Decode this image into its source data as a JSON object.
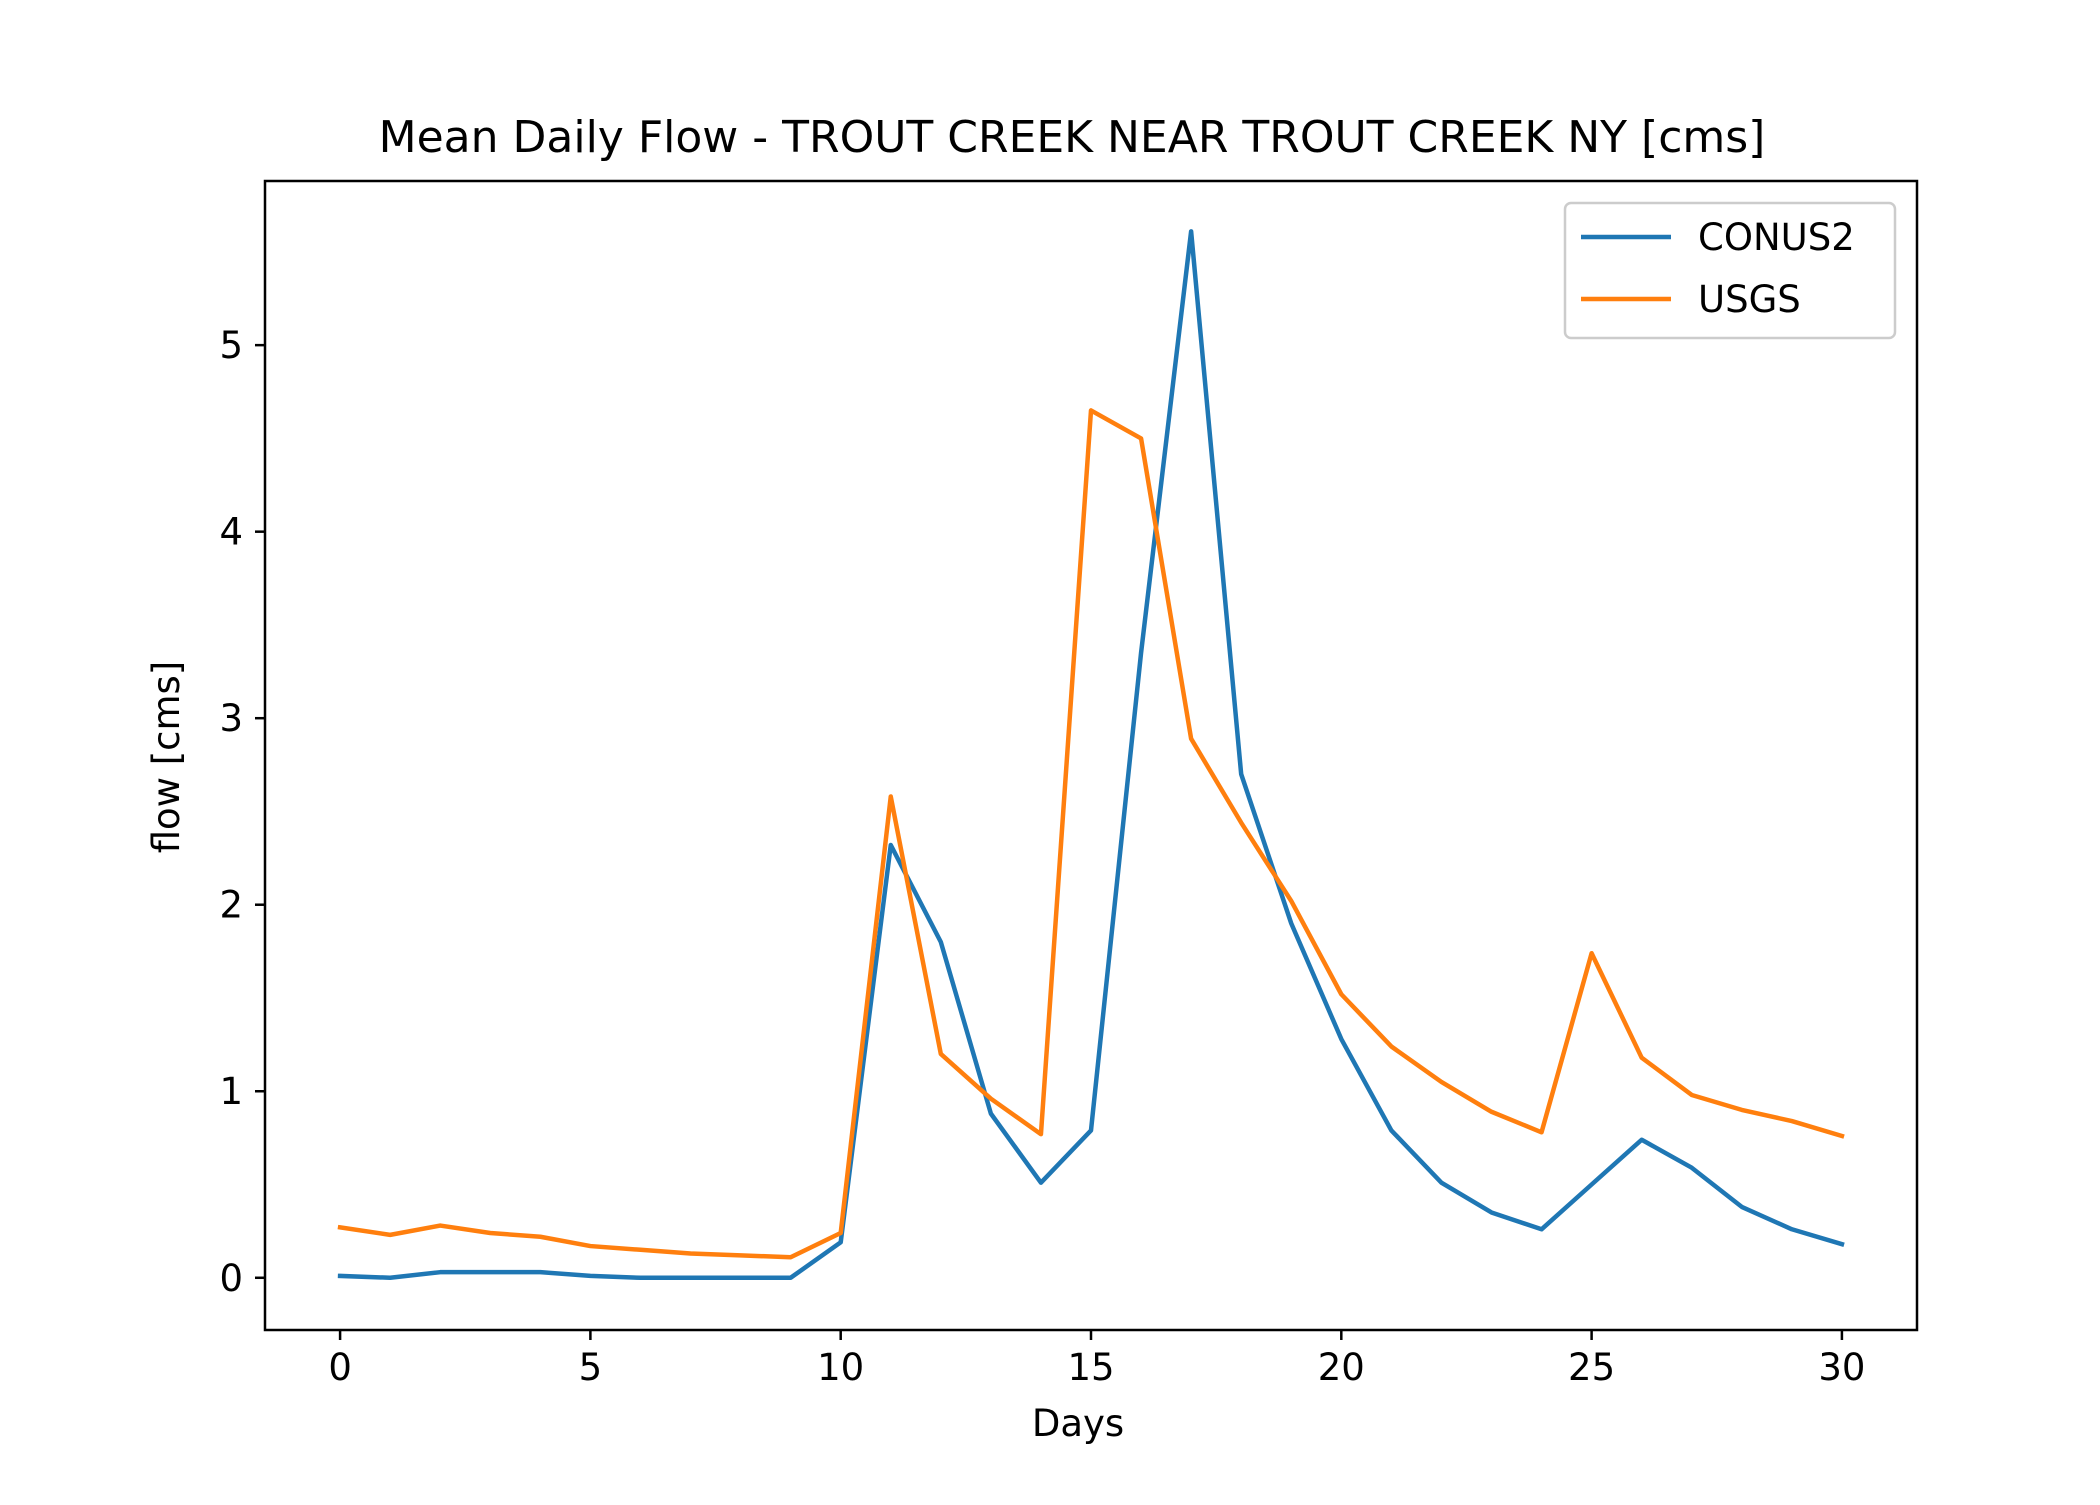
{
  "chart_data": {
    "type": "line",
    "title": "Mean Daily Flow - TROUT CREEK NEAR TROUT CREEK NY [cms]",
    "xlabel": "Days",
    "ylabel": "flow [cms]",
    "xlim": [
      -1.5,
      31.5
    ],
    "ylim": [
      -0.28,
      5.88
    ],
    "xticks": [
      0,
      5,
      10,
      15,
      20,
      25,
      30
    ],
    "yticks": [
      0,
      1,
      2,
      3,
      4,
      5
    ],
    "grid": false,
    "legend_position": "top-right",
    "x": [
      0,
      1,
      2,
      3,
      4,
      5,
      6,
      7,
      8,
      9,
      10,
      11,
      12,
      13,
      14,
      15,
      16,
      17,
      18,
      19,
      20,
      21,
      22,
      23,
      24,
      25,
      26,
      27,
      28,
      29,
      30
    ],
    "series": [
      {
        "name": "CONUS2",
        "color": "#1f77b4",
        "values": [
          0.01,
          0.0,
          0.03,
          0.03,
          0.03,
          0.01,
          0.0,
          0.0,
          0.0,
          0.0,
          0.19,
          2.32,
          1.8,
          0.88,
          0.51,
          0.79,
          3.35,
          5.61,
          2.7,
          1.9,
          1.28,
          0.79,
          0.51,
          0.35,
          0.26,
          0.5,
          0.74,
          0.59,
          0.38,
          0.26,
          0.18
        ]
      },
      {
        "name": "USGS",
        "color": "#ff7f0e",
        "values": [
          0.27,
          0.23,
          0.28,
          0.24,
          0.22,
          0.17,
          0.15,
          0.13,
          0.12,
          0.11,
          0.24,
          2.58,
          1.2,
          0.96,
          0.77,
          4.65,
          4.5,
          2.89,
          2.44,
          2.02,
          1.52,
          1.24,
          1.05,
          0.89,
          0.78,
          1.74,
          1.18,
          0.98,
          0.9,
          0.84,
          0.76
        ]
      }
    ]
  }
}
